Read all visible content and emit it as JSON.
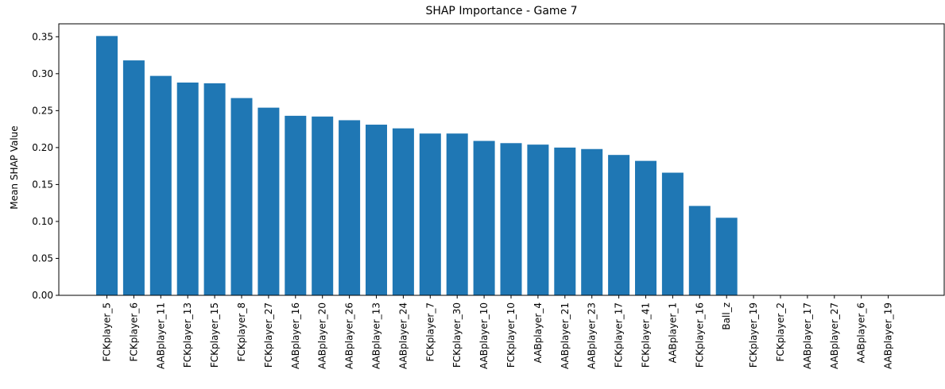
{
  "chart_data": {
    "type": "bar",
    "title": "SHAP Importance - Game 7",
    "xlabel": "",
    "ylabel": "Mean SHAP Value",
    "ylim": [
      0,
      0.3675
    ],
    "yticks": [
      0.0,
      0.05,
      0.1,
      0.15,
      0.2,
      0.25,
      0.3,
      0.35
    ],
    "ytick_labels": [
      "0.00",
      "0.05",
      "0.10",
      "0.15",
      "0.20",
      "0.25",
      "0.30",
      "0.35"
    ],
    "categories": [
      "FCKplayer_5",
      "FCKplayer_6",
      "AABplayer_11",
      "FCKplayer_13",
      "FCKplayer_15",
      "FCKplayer_8",
      "FCKplayer_27",
      "AABplayer_16",
      "AABplayer_20",
      "AABplayer_26",
      "AABplayer_13",
      "AABplayer_24",
      "FCKplayer_7",
      "FCKplayer_30",
      "AABplayer_10",
      "FCKplayer_10",
      "AABplayer_4",
      "AABplayer_21",
      "AABplayer_23",
      "FCKplayer_17",
      "FCKplayer_41",
      "AABplayer_1",
      "FCKplayer_16",
      "Ball_z",
      "FCKplayer_19",
      "FCKplayer_2",
      "AABplayer_17",
      "AABplayer_27",
      "AABplayer_6",
      "AABplayer_19"
    ],
    "values": [
      0.351,
      0.318,
      0.297,
      0.288,
      0.287,
      0.267,
      0.254,
      0.243,
      0.242,
      0.237,
      0.231,
      0.226,
      0.219,
      0.219,
      0.209,
      0.206,
      0.204,
      0.2,
      0.198,
      0.19,
      0.182,
      0.166,
      0.121,
      0.105,
      0.0,
      0.0,
      0.0,
      0.0,
      0.0,
      0.0
    ],
    "grid": false,
    "legend": "none",
    "bar_color": "#1f77b4"
  }
}
